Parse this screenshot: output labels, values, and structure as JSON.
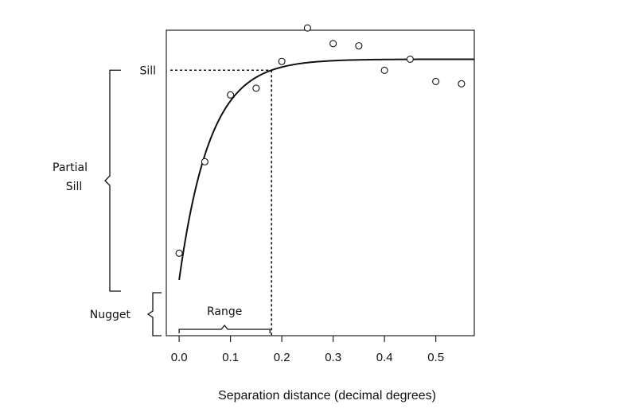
{
  "chart_data": {
    "type": "scatter",
    "xlabel": "Separation distance (decimal degrees)",
    "ylabel": "",
    "title": "",
    "xlim": [
      -0.025,
      0.575
    ],
    "ylim": [
      -0.05,
      1.32
    ],
    "x_ticks": [
      "0.0",
      "0.1",
      "0.2",
      "0.3",
      "0.4",
      "0.5"
    ],
    "x_tick_values": [
      0.0,
      0.1,
      0.2,
      0.3,
      0.4,
      0.5
    ],
    "grid": false,
    "points": [
      {
        "x": 0.0,
        "y": 0.32
      },
      {
        "x": 0.05,
        "y": 0.73
      },
      {
        "x": 0.1,
        "y": 1.03
      },
      {
        "x": 0.15,
        "y": 1.06
      },
      {
        "x": 0.2,
        "y": 1.18
      },
      {
        "x": 0.25,
        "y": 1.33
      },
      {
        "x": 0.3,
        "y": 1.26
      },
      {
        "x": 0.35,
        "y": 1.25
      },
      {
        "x": 0.4,
        "y": 1.14
      },
      {
        "x": 0.45,
        "y": 1.19
      },
      {
        "x": 0.5,
        "y": 1.09
      },
      {
        "x": 0.55,
        "y": 1.08
      }
    ],
    "model": {
      "nugget": 0.2,
      "sill": 1.19,
      "range": 0.18
    },
    "annotations": {
      "sill": "Sill",
      "partial_sill_line1": "Partial",
      "partial_sill_line2": "Sill",
      "nugget": "Nugget",
      "range": "Range"
    }
  }
}
